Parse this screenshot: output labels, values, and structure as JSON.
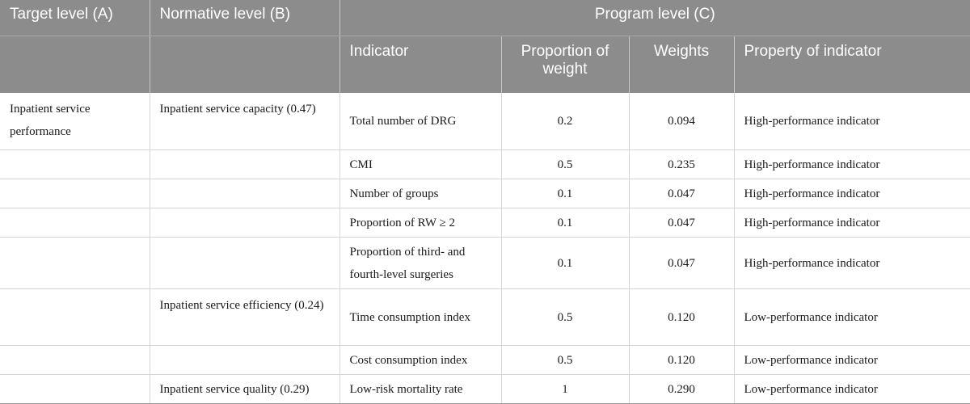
{
  "header": {
    "target_level": "Target level (A)",
    "normative_level": "Normative level (B)",
    "program_level": "Program level (C)",
    "indicator": "Indicator",
    "proportion_of_weight": "Proportion of weight",
    "weights": "Weights",
    "property_of_indicator": "Property of indicator"
  },
  "rows": [
    {
      "target": "Inpatient service performance",
      "normative": "Inpatient service capacity (0.47)",
      "indicator": "Total number of DRG",
      "proportion": "0.2",
      "weight": "0.094",
      "property": "High-performance indicator"
    },
    {
      "target": "",
      "normative": "",
      "indicator": "CMI",
      "proportion": "0.5",
      "weight": "0.235",
      "property": "High-performance indicator"
    },
    {
      "target": "",
      "normative": "",
      "indicator": "Number of groups",
      "proportion": "0.1",
      "weight": "0.047",
      "property": "High-performance indicator"
    },
    {
      "target": "",
      "normative": "",
      "indicator": "Proportion of RW ≥ 2",
      "proportion": "0.1",
      "weight": "0.047",
      "property": "High-performance indicator"
    },
    {
      "target": "",
      "normative": "",
      "indicator": "Proportion of third- and fourth-level surgeries",
      "proportion": "0.1",
      "weight": "0.047",
      "property": "High-performance indicator"
    },
    {
      "target": "",
      "normative": "Inpatient service efficiency (0.24)",
      "indicator": "Time consumption index",
      "proportion": "0.5",
      "weight": "0.120",
      "property": "Low-performance indicator"
    },
    {
      "target": "",
      "normative": "",
      "indicator": "Cost consumption index",
      "proportion": "0.5",
      "weight": "0.120",
      "property": "Low-performance indicator"
    },
    {
      "target": "",
      "normative": "Inpatient service quality (0.29)",
      "indicator": "Low-risk mortality rate",
      "proportion": "1",
      "weight": "0.290",
      "property": "Low-performance indicator"
    }
  ]
}
